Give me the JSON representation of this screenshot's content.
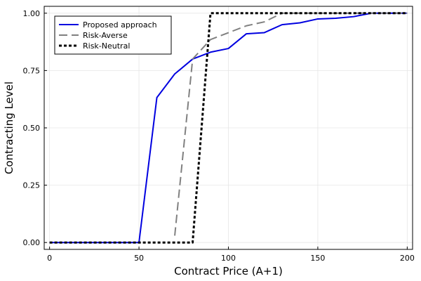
{
  "chart_data": {
    "type": "line",
    "xlabel": "Contract Price (A+1)",
    "ylabel": "Contracting Level",
    "xlim": [
      -3,
      203
    ],
    "ylim": [
      -0.03,
      1.03
    ],
    "xticks": [
      0,
      50,
      100,
      150,
      200
    ],
    "yticks": [
      0.0,
      0.25,
      0.5,
      0.75,
      1.0
    ],
    "xtick_labels": [
      "0",
      "50",
      "100",
      "150",
      "200"
    ],
    "ytick_labels": [
      "0.00",
      "0.25",
      "0.50",
      "0.75",
      "1.00"
    ],
    "grid": true,
    "legend_position": "top-left",
    "series": [
      {
        "name": "Proposed approach",
        "color": "#0000e0",
        "dash": "solid",
        "x": [
          0,
          10,
          20,
          30,
          40,
          50,
          60,
          70,
          80,
          90,
          100,
          110,
          120,
          130,
          140,
          150,
          160,
          170,
          180,
          190,
          200
        ],
        "y": [
          0,
          0,
          0,
          0,
          0,
          0,
          0.632,
          0.735,
          0.8,
          0.83,
          0.846,
          0.91,
          0.915,
          0.95,
          0.958,
          0.975,
          0.978,
          0.985,
          1.0,
          1.0,
          1.0
        ]
      },
      {
        "name": "Risk-Averse",
        "color": "#808080",
        "dash": "dashed",
        "x": [
          70,
          80,
          90,
          100,
          110,
          120,
          130,
          140,
          150,
          160,
          170,
          180,
          190,
          200
        ],
        "y": [
          0.03,
          0.8,
          0.885,
          0.915,
          0.945,
          0.962,
          1.0,
          1.0,
          1.0,
          1.0,
          1.0,
          1.0,
          1.0,
          1.0
        ]
      },
      {
        "name": "Risk-Neutral",
        "color": "#000000",
        "dash": "dotted",
        "x": [
          0,
          10,
          20,
          30,
          40,
          50,
          60,
          70,
          80,
          90,
          100,
          110,
          120,
          130,
          140,
          150,
          160,
          170,
          180,
          190,
          200
        ],
        "y": [
          0,
          0,
          0,
          0,
          0,
          0,
          0,
          0,
          0,
          1.0,
          1.0,
          1.0,
          1.0,
          1.0,
          1.0,
          1.0,
          1.0,
          1.0,
          1.0,
          1.0,
          1.0
        ]
      }
    ]
  }
}
